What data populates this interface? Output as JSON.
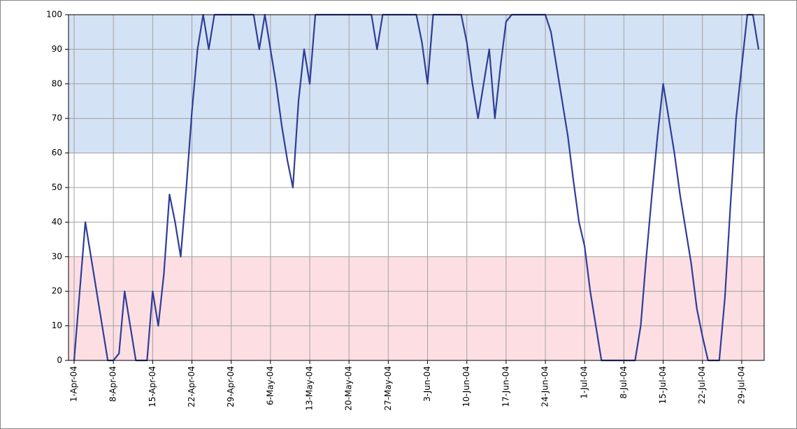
{
  "chart_data": {
    "type": "line",
    "x": [
      "2004-04-01",
      "2004-04-02",
      "2004-04-03",
      "2004-04-04",
      "2004-04-05",
      "2004-04-06",
      "2004-04-07",
      "2004-04-08",
      "2004-04-09",
      "2004-04-10",
      "2004-04-11",
      "2004-04-12",
      "2004-04-13",
      "2004-04-14",
      "2004-04-15",
      "2004-04-16",
      "2004-04-17",
      "2004-04-18",
      "2004-04-19",
      "2004-04-20",
      "2004-04-21",
      "2004-04-22",
      "2004-04-23",
      "2004-04-24",
      "2004-04-25",
      "2004-04-26",
      "2004-04-27",
      "2004-04-28",
      "2004-04-29",
      "2004-04-30",
      "2004-05-01",
      "2004-05-02",
      "2004-05-03",
      "2004-05-04",
      "2004-05-05",
      "2004-05-06",
      "2004-05-07",
      "2004-05-08",
      "2004-05-09",
      "2004-05-10",
      "2004-05-11",
      "2004-05-12",
      "2004-05-13",
      "2004-05-14",
      "2004-05-15",
      "2004-05-16",
      "2004-05-17",
      "2004-05-18",
      "2004-05-19",
      "2004-05-20",
      "2004-05-21",
      "2004-05-22",
      "2004-05-23",
      "2004-05-24",
      "2004-05-25",
      "2004-05-26",
      "2004-05-27",
      "2004-05-28",
      "2004-05-29",
      "2004-05-30",
      "2004-05-31",
      "2004-06-01",
      "2004-06-02",
      "2004-06-03",
      "2004-06-04",
      "2004-06-05",
      "2004-06-06",
      "2004-06-07",
      "2004-06-08",
      "2004-06-09",
      "2004-06-10",
      "2004-06-11",
      "2004-06-12",
      "2004-06-13",
      "2004-06-14",
      "2004-06-15",
      "2004-06-16",
      "2004-06-17",
      "2004-06-18",
      "2004-06-19",
      "2004-06-20",
      "2004-06-21",
      "2004-06-22",
      "2004-06-23",
      "2004-06-24",
      "2004-06-25",
      "2004-06-26",
      "2004-06-27",
      "2004-06-28",
      "2004-06-29",
      "2004-06-30",
      "2004-07-01",
      "2004-07-02",
      "2004-07-03",
      "2004-07-04",
      "2004-07-05",
      "2004-07-06",
      "2004-07-07",
      "2004-07-08",
      "2004-07-09",
      "2004-07-10",
      "2004-07-11",
      "2004-07-12",
      "2004-07-13",
      "2004-07-14",
      "2004-07-15",
      "2004-07-16",
      "2004-07-17",
      "2004-07-18",
      "2004-07-19",
      "2004-07-20",
      "2004-07-21",
      "2004-07-22",
      "2004-07-23",
      "2004-07-24",
      "2004-07-25",
      "2004-07-26",
      "2004-07-27",
      "2004-07-28",
      "2004-07-29",
      "2004-07-30",
      "2004-07-31",
      "2004-08-01"
    ],
    "series": [
      {
        "color": "#2f3d99",
        "values": [
          0,
          20,
          40,
          30,
          20,
          10,
          0,
          0,
          2,
          20,
          10,
          0,
          0,
          0,
          20,
          10,
          25,
          48,
          40,
          30,
          50,
          72,
          90,
          100,
          90,
          100,
          100,
          100,
          100,
          100,
          100,
          100,
          100,
          90,
          100,
          90,
          80,
          68,
          58,
          50,
          75,
          90,
          80,
          100,
          100,
          100,
          100,
          100,
          100,
          100,
          100,
          100,
          100,
          100,
          90,
          100,
          100,
          100,
          100,
          100,
          100,
          100,
          92,
          80,
          100,
          100,
          100,
          100,
          100,
          100,
          92,
          80,
          70,
          80,
          90,
          70,
          85,
          98,
          100,
          100,
          100,
          100,
          100,
          100,
          100,
          95,
          85,
          75,
          65,
          52,
          40,
          33,
          20,
          10,
          0,
          0,
          0,
          0,
          0,
          0,
          0,
          10,
          30,
          48,
          65,
          80,
          70,
          60,
          48,
          38,
          28,
          15,
          7,
          0,
          0,
          0,
          18,
          45,
          70,
          85,
          100,
          100,
          90
        ]
      }
    ],
    "bands": [
      {
        "from": 0,
        "to": 30,
        "color": "#fddfe3"
      },
      {
        "from": 30,
        "to": 60,
        "color": "#ffffff"
      },
      {
        "from": 60,
        "to": 100,
        "color": "#d4e2f5"
      }
    ],
    "xlim": [
      "2004-03-31",
      "2004-08-02"
    ],
    "xticks": [
      {
        "value": "2004-04-01",
        "label": "1-Apr-04"
      },
      {
        "value": "2004-04-08",
        "label": "8-Apr-04"
      },
      {
        "value": "2004-04-15",
        "label": "15-Apr-04"
      },
      {
        "value": "2004-04-22",
        "label": "22-Apr-04"
      },
      {
        "value": "2004-04-29",
        "label": "29-Apr-04"
      },
      {
        "value": "2004-05-06",
        "label": "6-May-04"
      },
      {
        "value": "2004-05-13",
        "label": "13-May-04"
      },
      {
        "value": "2004-05-20",
        "label": "20-May-04"
      },
      {
        "value": "2004-05-27",
        "label": "27-May-04"
      },
      {
        "value": "2004-06-03",
        "label": "3-Jun-04"
      },
      {
        "value": "2004-06-10",
        "label": "10-Jun-04"
      },
      {
        "value": "2004-06-17",
        "label": "17-Jun-04"
      },
      {
        "value": "2004-06-24",
        "label": "24-Jun-04"
      },
      {
        "value": "2004-07-01",
        "label": "1-Jul-04"
      },
      {
        "value": "2004-07-08",
        "label": "8-Jul-04"
      },
      {
        "value": "2004-07-15",
        "label": "15-Jul-04"
      },
      {
        "value": "2004-07-22",
        "label": "22-Jul-04"
      },
      {
        "value": "2004-07-29",
        "label": "29-Jul-04"
      }
    ],
    "ylim": [
      0,
      100
    ],
    "yticks": [
      0,
      10,
      20,
      30,
      40,
      50,
      60,
      70,
      80,
      90,
      100
    ],
    "grid": true
  }
}
